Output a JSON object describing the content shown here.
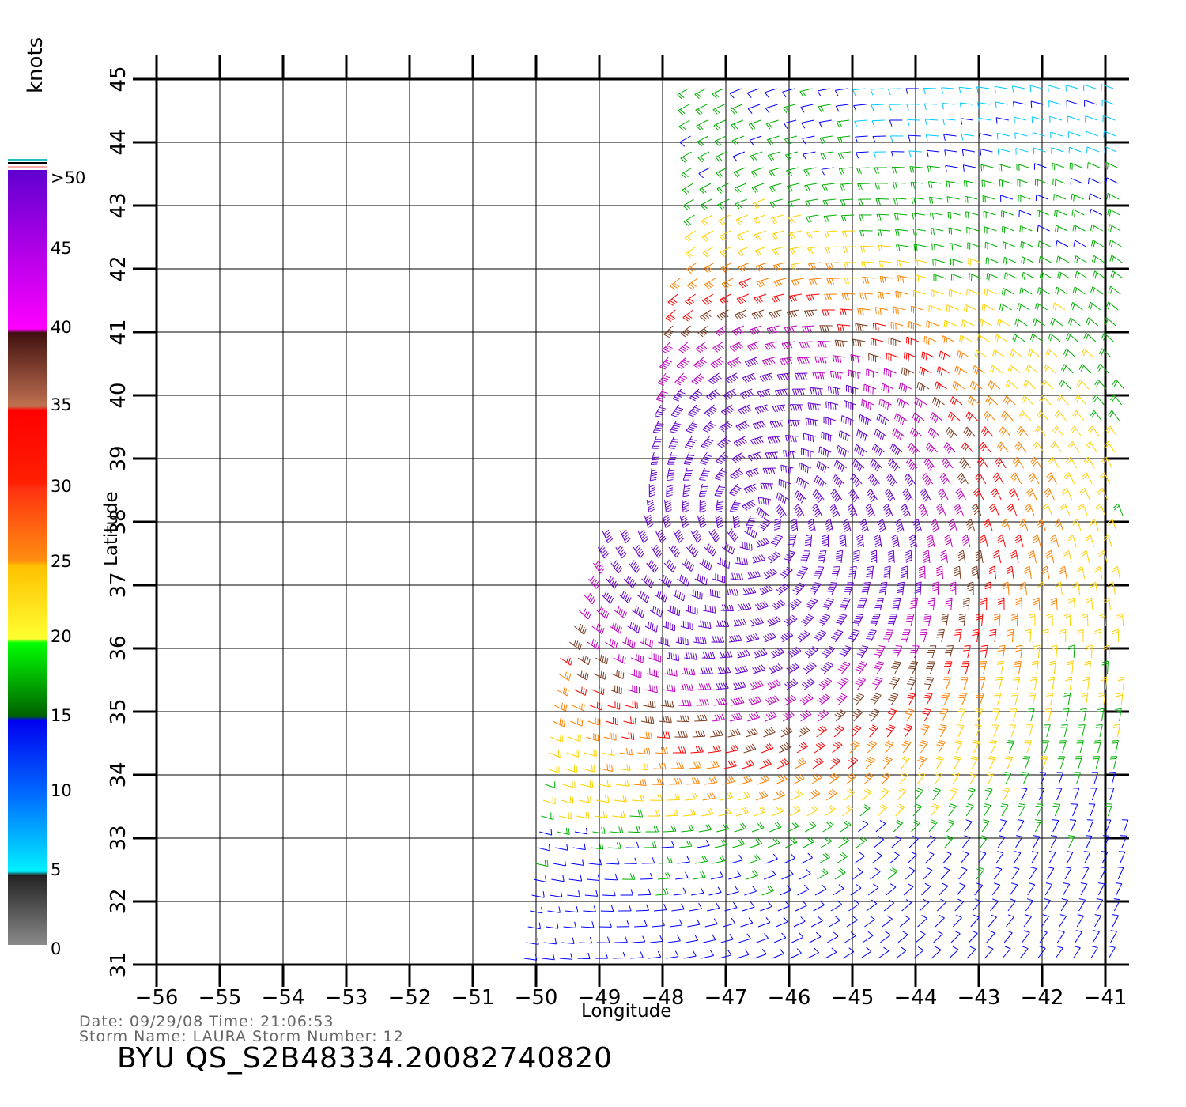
{
  "map": {
    "lon_range": [
      -56,
      -41
    ],
    "lat_range": [
      31,
      45
    ],
    "lon_ticks": [
      -56,
      -55,
      -54,
      -53,
      -52,
      -51,
      -50,
      -49,
      -48,
      -47,
      -46,
      -45,
      -44,
      -43,
      -42,
      -41
    ],
    "lat_ticks": [
      31,
      32,
      33,
      34,
      35,
      36,
      37,
      38,
      39,
      40,
      41,
      42,
      43,
      44,
      45
    ],
    "xlabel": "Longitude",
    "ylabel": "Latitude",
    "grid": true,
    "barb_color_scale": [
      {
        "range": "0-5",
        "color": "#555555"
      },
      {
        "range": "5-10",
        "color": "#00c8ff"
      },
      {
        "range": "10-15",
        "color": "#0000ff"
      },
      {
        "range": "15-20",
        "color": "#00b000"
      },
      {
        "range": "20-25",
        "color": "#ffd000"
      },
      {
        "range": "25-30",
        "color": "#ff8000"
      },
      {
        "range": "30-35",
        "color": "#ff0000"
      },
      {
        "range": "35-40",
        "color": "#7a3a1e"
      },
      {
        "range": "40-50",
        "color": "#c000c0"
      },
      {
        "range": ">50",
        "color": "#6600cc"
      }
    ],
    "storm_center_approx": {
      "lon": -46.5,
      "lat": 38.0
    }
  },
  "colorbar": {
    "unit": "knots",
    "labels": [
      "0",
      "5",
      "10",
      "15",
      "20",
      "25",
      "30",
      "35",
      "40",
      "45",
      ">50"
    ]
  },
  "footer": {
    "date_line": "Date: 09/29/08   Time: 21:06:53",
    "storm_line": "Storm Name: LAURA   Storm Number: 12",
    "product": "BYU QS_S2B48334.20082740820"
  }
}
